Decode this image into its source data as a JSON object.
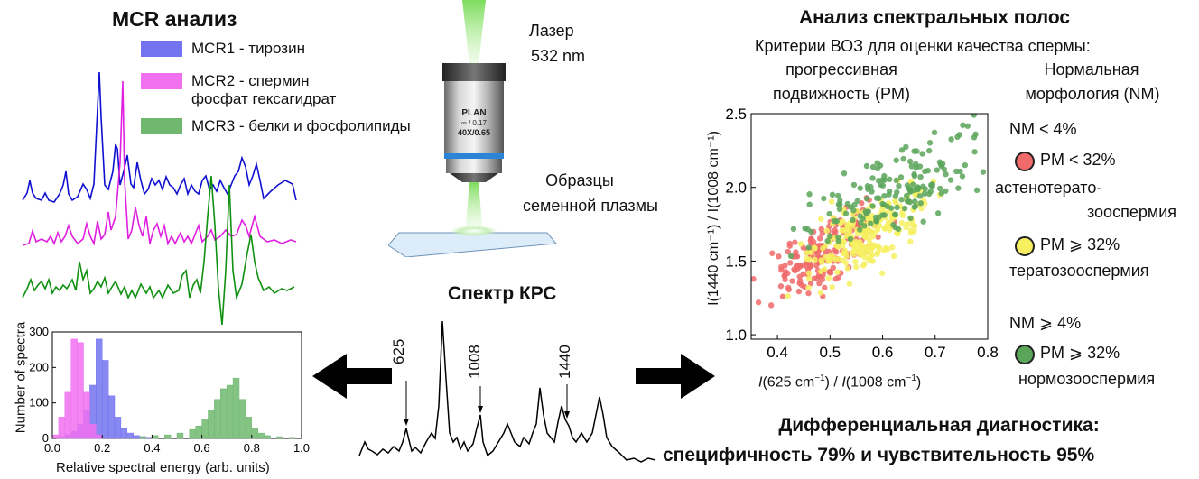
{
  "mcr": {
    "title": "MCR анализ",
    "legend": [
      {
        "line1": "MCR1 - тирозин",
        "line2": "",
        "color": "#7373f0"
      },
      {
        "line1": "MCR2 - спермин",
        "line2": "фосфат гексагидрат",
        "color": "#f070f0"
      },
      {
        "line1": "MCR3 - белки и фосфолипиды",
        "line2": "",
        "color": "#70b870"
      }
    ]
  },
  "laser": {
    "line1": "Лазер",
    "line2": "532 nm",
    "objective_brand": "PLAN",
    "objective_spec1": "∞ / 0.17",
    "objective_spec2": "40X/0.65"
  },
  "samples": {
    "line1": "Образцы",
    "line2": "семенной плазмы"
  },
  "raman": {
    "title": "Спектр КРС",
    "peaks": [
      "625",
      "1008",
      "1440"
    ]
  },
  "histogram": {
    "ylabel": "Number of spectra",
    "xlabel": "Relative spectral energy (arb. units)",
    "x_ticks": [
      "0.0",
      "0.2",
      "0.4",
      "0.6",
      "0.8",
      "1.0"
    ],
    "y_ticks": [
      "0",
      "100",
      "200",
      "300"
    ]
  },
  "band_analysis": {
    "title": "Анализ спектральных полос",
    "criteria": "Критерии ВОЗ для оценки качества спермы:",
    "pm_line1": "прогрессивная",
    "pm_line2": "подвижность (PM)",
    "nm_line1": "Нормальная",
    "nm_line2": "морфология (NM)"
  },
  "scatter_axes": {
    "x_ticks": [
      "0.4",
      "0.5",
      "0.6",
      "0.7",
      "0.8"
    ],
    "y_ticks": [
      "1.0",
      "1.5",
      "2.0",
      "2.5"
    ],
    "xlabel_var": "I",
    "xlabel_rest": "(625 cm",
    "xlabel_mid": ") / ",
    "xlabel_var2": "I",
    "xlabel_rest2": "(1008 cm",
    "xlabel_end": ")",
    "exp": "−1",
    "ylabel": "I(1440 cm⁻¹) / I(1008 cm⁻¹)"
  },
  "groups": {
    "nm_low": "NM < 4%",
    "red_label": "PM < 32%",
    "red_desc1": "астенотерато-",
    "red_desc2": "зооспермия",
    "yellow_label": "PM ⩾ 32%",
    "yellow_desc": "тератозооспермия",
    "nm_high": "NM ⩾ 4%",
    "green_label": "PM ⩾ 32%",
    "green_desc": "нормозооспермия",
    "colors": {
      "red": "#f06a6a",
      "yellow": "#f6f060",
      "green": "#5aa55a"
    }
  },
  "diagnosis": {
    "line1": "Дифференциальная диагностика:",
    "line2": "специфичность 79% и чувствительность 95%"
  },
  "chart_data": [
    {
      "type": "bar",
      "xlabel": "Relative spectral energy (arb. units)",
      "ylabel": "Number of spectra",
      "xlim": [
        0,
        1.0
      ],
      "ylim": [
        0,
        300
      ],
      "bin_width": 0.025,
      "series": [
        {
          "name": "MCR1 - тирозин",
          "color": "#7373f0",
          "x": [
            0.025,
            0.05,
            0.075,
            0.1,
            0.125,
            0.15,
            0.175,
            0.2,
            0.225,
            0.25,
            0.275,
            0.3,
            0.325,
            0.35,
            0.375,
            0.4
          ],
          "values": [
            5,
            10,
            20,
            40,
            80,
            150,
            280,
            220,
            120,
            60,
            30,
            15,
            8,
            5,
            3,
            2
          ]
        },
        {
          "name": "MCR2 - спермин фосфат гексагидрат",
          "color": "#f070f0",
          "x": [
            0.0,
            0.025,
            0.05,
            0.075,
            0.1,
            0.125,
            0.15,
            0.175
          ],
          "values": [
            10,
            60,
            130,
            280,
            270,
            130,
            40,
            10
          ]
        },
        {
          "name": "MCR3 - белки и фосфолипиды",
          "color": "#70b870",
          "x": [
            0.35,
            0.4,
            0.45,
            0.5,
            0.55,
            0.575,
            0.6,
            0.625,
            0.65,
            0.675,
            0.7,
            0.725,
            0.75,
            0.775,
            0.8,
            0.825,
            0.85,
            0.9,
            0.95
          ],
          "values": [
            5,
            8,
            10,
            15,
            25,
            35,
            55,
            80,
            110,
            140,
            150,
            170,
            110,
            60,
            30,
            15,
            8,
            5,
            3
          ]
        }
      ]
    },
    {
      "type": "scatter",
      "xlabel": "I(625 cm⁻¹) / I(1008 cm⁻¹)",
      "ylabel": "I(1440 cm⁻¹) / I(1008 cm⁻¹)",
      "xlim": [
        0.35,
        0.8
      ],
      "ylim": [
        0.97,
        2.5
      ],
      "series": [
        {
          "name": "PM < 32%",
          "color": "#f06a6a",
          "center": [
            0.5,
            1.58
          ],
          "spread": [
            0.05,
            0.18
          ],
          "count": 180
        },
        {
          "name": "PM ⩾ 32% (NM < 4%)",
          "color": "#f6f060",
          "center": [
            0.57,
            1.68
          ],
          "spread": [
            0.06,
            0.2
          ],
          "count": 230
        },
        {
          "name": "PM ⩾ 32% (NM ⩾ 4%)",
          "color": "#5aa55a",
          "center": [
            0.63,
            2.0
          ],
          "spread": [
            0.08,
            0.24
          ],
          "count": 170
        }
      ]
    }
  ]
}
